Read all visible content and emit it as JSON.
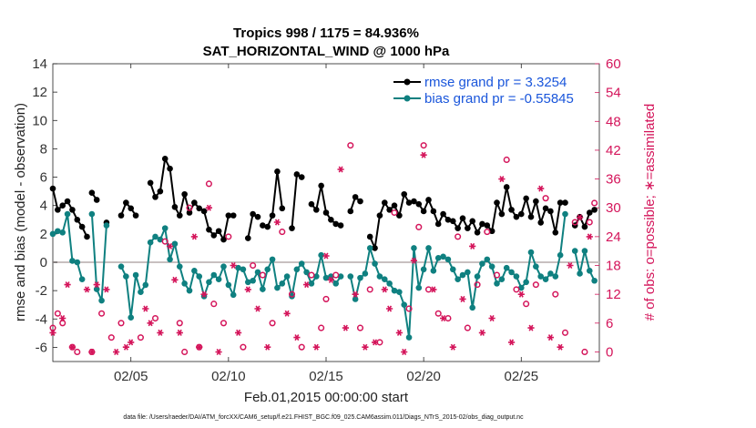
{
  "chart_data": {
    "type": "line",
    "title": "Tropics 998 / 1175 = 84.936%",
    "subtitle": "SAT_HORIZONTAL_WIND @ 1000 hPa",
    "xlabel": "Feb.01,2015 00:00:00 start",
    "ylabel": "rmse and bias (model - observation)",
    "ylabel_right": "# of obs: o=possible; ∗=assimilated",
    "footer": "data file: /Users/raeder/DAI/ATM_forcXX/CAM6_setup/f.e21.FHIST_BGC.f09_025.CAM6assim.011/Diags_NTrS_2015-02/obs_diag_output.nc",
    "xlim": [
      1,
      29
    ],
    "ylim": [
      -7,
      14
    ],
    "ylim_right": [
      -2,
      60
    ],
    "x_ticks": [
      5,
      10,
      15,
      20,
      25
    ],
    "x_tick_labels": [
      "02/05",
      "02/10",
      "02/15",
      "02/20",
      "02/25"
    ],
    "y_ticks": [
      -6,
      -4,
      -2,
      0,
      2,
      4,
      6,
      8,
      10,
      12,
      14
    ],
    "y_ticks_right": [
      0,
      6,
      12,
      18,
      24,
      30,
      36,
      42,
      48,
      54,
      60
    ],
    "legend": [
      {
        "label": "rmse grand pr = 3.3254",
        "color": "#000000"
      },
      {
        "label": "bias grand pr = -0.55845",
        "color": "#0f8080"
      }
    ],
    "series": [
      {
        "name": "rmse",
        "color": "#000000",
        "x": [
          1.0,
          1.25,
          1.5,
          1.75,
          2.0,
          2.25,
          2.5,
          2.75,
          null,
          3.0,
          3.25,
          3.5,
          3.75,
          null,
          4.5,
          4.75,
          5.0,
          5.25,
          5.5,
          null,
          6.0,
          6.25,
          6.5,
          6.75,
          7.0,
          7.25,
          7.5,
          7.75,
          8.0,
          8.25,
          8.5,
          8.75,
          9.0,
          9.25,
          9.5,
          9.75,
          10.0,
          10.25,
          10.5,
          null,
          11.0,
          11.25,
          11.5,
          null,
          11.75,
          12.0,
          12.25,
          12.5,
          12.75,
          null,
          13.25,
          13.5,
          13.75,
          null,
          14.25,
          14.5,
          14.75,
          15.0,
          15.25,
          15.5,
          15.75,
          null,
          16.25,
          16.5,
          16.75,
          null,
          17.25,
          17.5,
          17.75,
          18.0,
          18.25,
          18.5,
          18.75,
          19.0,
          19.25,
          19.5,
          19.75,
          20.0,
          20.25,
          20.5,
          20.75,
          21.0,
          21.25,
          21.5,
          21.75,
          22.0,
          22.25,
          22.5,
          22.75,
          23.0,
          23.25,
          23.5,
          23.75,
          24.0,
          24.25,
          24.5,
          24.75,
          25.0,
          25.25,
          25.5,
          25.75,
          26.0,
          26.25,
          26.5,
          26.75,
          27.0,
          27.25,
          null,
          27.75,
          28.0,
          28.25,
          28.5,
          28.75
        ],
        "values": [
          5.2,
          3.7,
          4.0,
          4.3,
          3.7,
          3.0,
          2.5,
          1.8,
          null,
          4.9,
          4.4,
          null,
          2.8,
          null,
          3.3,
          4.2,
          3.8,
          3.3,
          null,
          null,
          5.6,
          4.6,
          5.0,
          7.3,
          6.6,
          3.9,
          3.3,
          4.8,
          3.5,
          4.2,
          3.8,
          3.6,
          2.3,
          1.9,
          2.2,
          1.6,
          3.3,
          3.3,
          null,
          null,
          1.7,
          3.4,
          3.2,
          null,
          2.6,
          2.5,
          3.3,
          6.4,
          3.8,
          null,
          2.4,
          6.2,
          6.0,
          null,
          4.1,
          3.7,
          5.4,
          3.5,
          3.0,
          2.7,
          2.6,
          null,
          3.6,
          4.6,
          4.3,
          null,
          1.8,
          1.0,
          3.3,
          4.2,
          3.7,
          4.0,
          3.3,
          4.8,
          4.2,
          4.3,
          4.1,
          3.6,
          4.4,
          3.6,
          2.7,
          3.4,
          3.0,
          2.9,
          2.4,
          3.1,
          2.4,
          2.9,
          2.1,
          2.7,
          2.6,
          2.2,
          4.2,
          3.4,
          5.3,
          3.7,
          3.2,
          3.4,
          4.5,
          3.2,
          4.3,
          2.8,
          3.8,
          3.6,
          2.1,
          4.2,
          4.2,
          null,
          2.6,
          3.2,
          2.5,
          3.5,
          3.7
        ]
      },
      {
        "name": "bias",
        "color": "#0f8080",
        "x": [
          1.0,
          1.25,
          1.5,
          1.75,
          2.0,
          2.25,
          2.5,
          null,
          3.0,
          3.25,
          3.5,
          3.75,
          null,
          4.5,
          4.75,
          5.0,
          5.25,
          5.5,
          5.75,
          6.0,
          6.25,
          6.5,
          6.75,
          7.0,
          7.25,
          7.5,
          7.75,
          8.0,
          8.25,
          8.5,
          8.75,
          9.0,
          9.25,
          9.5,
          9.75,
          10.0,
          10.25,
          10.5,
          10.75,
          11.0,
          11.25,
          11.5,
          11.75,
          12.0,
          12.25,
          12.5,
          12.75,
          13.0,
          13.25,
          13.5,
          13.75,
          14.0,
          14.25,
          14.5,
          14.75,
          15.0,
          15.25,
          15.5,
          15.75,
          null,
          16.25,
          16.5,
          16.75,
          17.0,
          17.25,
          17.5,
          17.75,
          18.0,
          18.25,
          18.5,
          18.75,
          19.0,
          19.25,
          19.5,
          19.75,
          20.0,
          20.25,
          20.5,
          20.75,
          21.0,
          21.25,
          21.5,
          21.75,
          22.0,
          22.25,
          22.5,
          22.75,
          23.0,
          23.25,
          23.5,
          23.75,
          24.0,
          24.25,
          24.5,
          24.75,
          25.0,
          25.25,
          25.5,
          25.75,
          26.0,
          26.25,
          26.5,
          26.75,
          27.0,
          27.25,
          null,
          27.75,
          28.0,
          28.25,
          28.5,
          28.75
        ],
        "values": [
          2.0,
          2.2,
          2.1,
          3.4,
          0.1,
          0.0,
          -1.2,
          null,
          3.4,
          -1.9,
          -2.7,
          2.6,
          null,
          -0.3,
          -1.0,
          -3.9,
          -0.9,
          -2.1,
          -1.6,
          1.4,
          1.8,
          1.6,
          2.4,
          0.2,
          1.3,
          -0.3,
          -1.5,
          -2.0,
          -0.6,
          -1.0,
          -2.4,
          -1.4,
          -0.9,
          -1.2,
          -0.3,
          -1.6,
          -2.3,
          -0.4,
          -0.5,
          -1.4,
          -1.3,
          -0.7,
          -1.9,
          -0.5,
          0.2,
          -1.8,
          -1.5,
          -1.0,
          -2.4,
          -0.5,
          -0.1,
          -0.7,
          -1.5,
          -1.0,
          0.5,
          -1.1,
          -1.0,
          -1.5,
          -1.0,
          null,
          -1.0,
          -2.6,
          -1.1,
          -0.8,
          1.0,
          -0.1,
          -1.0,
          -1.2,
          -1.5,
          -2.0,
          -2.1,
          -3.0,
          -5.3,
          1.0,
          -1.8,
          -0.5,
          1.0,
          -0.6,
          0.3,
          0.4,
          0.2,
          -0.5,
          -1.2,
          -0.9,
          -0.7,
          -3.2,
          -1.0,
          -0.1,
          0.2,
          -0.3,
          -1.5,
          -1.2,
          -0.4,
          -0.7,
          -1.0,
          -1.8,
          -1.4,
          0.7,
          -0.3,
          -1.0,
          -1.2,
          -0.8,
          -1.0,
          0.5,
          3.4,
          null,
          0.8,
          -0.8,
          0.8,
          -0.6,
          -1.3
        ]
      },
      {
        "name": "obs possible",
        "marker": "circle",
        "axis": "right",
        "color": "#d4145a",
        "x": [
          1.0,
          1.25,
          1.5,
          2.0,
          2.25,
          3.0,
          3.5,
          4.0,
          4.5,
          5.5,
          6.25,
          6.75,
          7.5,
          7.75,
          8.0,
          8.5,
          9.0,
          9.25,
          9.75,
          10.0,
          10.75,
          11.25,
          11.75,
          12.25,
          12.75,
          13.25,
          13.75,
          14.25,
          14.75,
          15.0,
          15.5,
          16.25,
          16.75,
          17.25,
          17.75,
          18.5,
          19.25,
          19.75,
          20.0,
          20.25,
          20.75,
          21.25,
          21.75,
          22.25,
          22.75,
          23.25,
          23.75,
          24.25,
          24.75,
          25.25,
          25.75,
          26.25,
          26.75,
          27.25,
          27.75,
          28.25,
          28.5,
          28.75
        ],
        "values": [
          5,
          8,
          6,
          1,
          0,
          0,
          8,
          3,
          6,
          3,
          7,
          23,
          6,
          0,
          30,
          1,
          35,
          10,
          6,
          24,
          1,
          18,
          16,
          6,
          25,
          12,
          1,
          16,
          5,
          11,
          16,
          43,
          5,
          13,
          2,
          29,
          9,
          26,
          43,
          13,
          8,
          7,
          24,
          5,
          14,
          25,
          16,
          40,
          13,
          10,
          14,
          32,
          12,
          4,
          27,
          0,
          27,
          31
        ]
      },
      {
        "name": "obs assimilated",
        "marker": "star",
        "axis": "right",
        "color": "#d4145a",
        "x": [
          1.0,
          1.5,
          1.75,
          2.0,
          2.75,
          3.0,
          3.25,
          3.75,
          4.25,
          4.75,
          5.0,
          5.75,
          6.0,
          6.5,
          7.0,
          7.25,
          7.5,
          8.25,
          8.5,
          8.75,
          9.0,
          9.5,
          10.25,
          10.5,
          11.0,
          11.5,
          12.0,
          12.5,
          13.0,
          13.5,
          14.0,
          14.5,
          15.0,
          15.25,
          15.75,
          16.0,
          16.5,
          17.0,
          17.5,
          18.0,
          18.25,
          18.75,
          19.0,
          19.5,
          20.0,
          20.5,
          21.0,
          21.5,
          22.0,
          22.5,
          23.0,
          23.5,
          24.0,
          24.5,
          25.0,
          25.5,
          26.0,
          26.5,
          27.0,
          27.5,
          28.0,
          28.5
        ],
        "values": [
          4,
          7,
          14,
          1,
          13,
          0,
          14,
          13,
          0,
          1,
          2,
          9,
          6,
          4,
          22,
          15,
          4,
          24,
          1,
          12,
          30,
          0,
          18,
          4,
          13,
          9,
          1,
          27,
          8,
          3,
          14,
          1,
          20,
          15,
          38,
          5,
          12,
          1,
          2,
          13,
          9,
          4,
          0,
          19,
          41,
          13,
          7,
          1,
          11,
          22,
          4,
          7,
          36,
          2,
          12,
          5,
          34,
          3,
          1,
          18,
          28,
          24
        ]
      }
    ]
  }
}
